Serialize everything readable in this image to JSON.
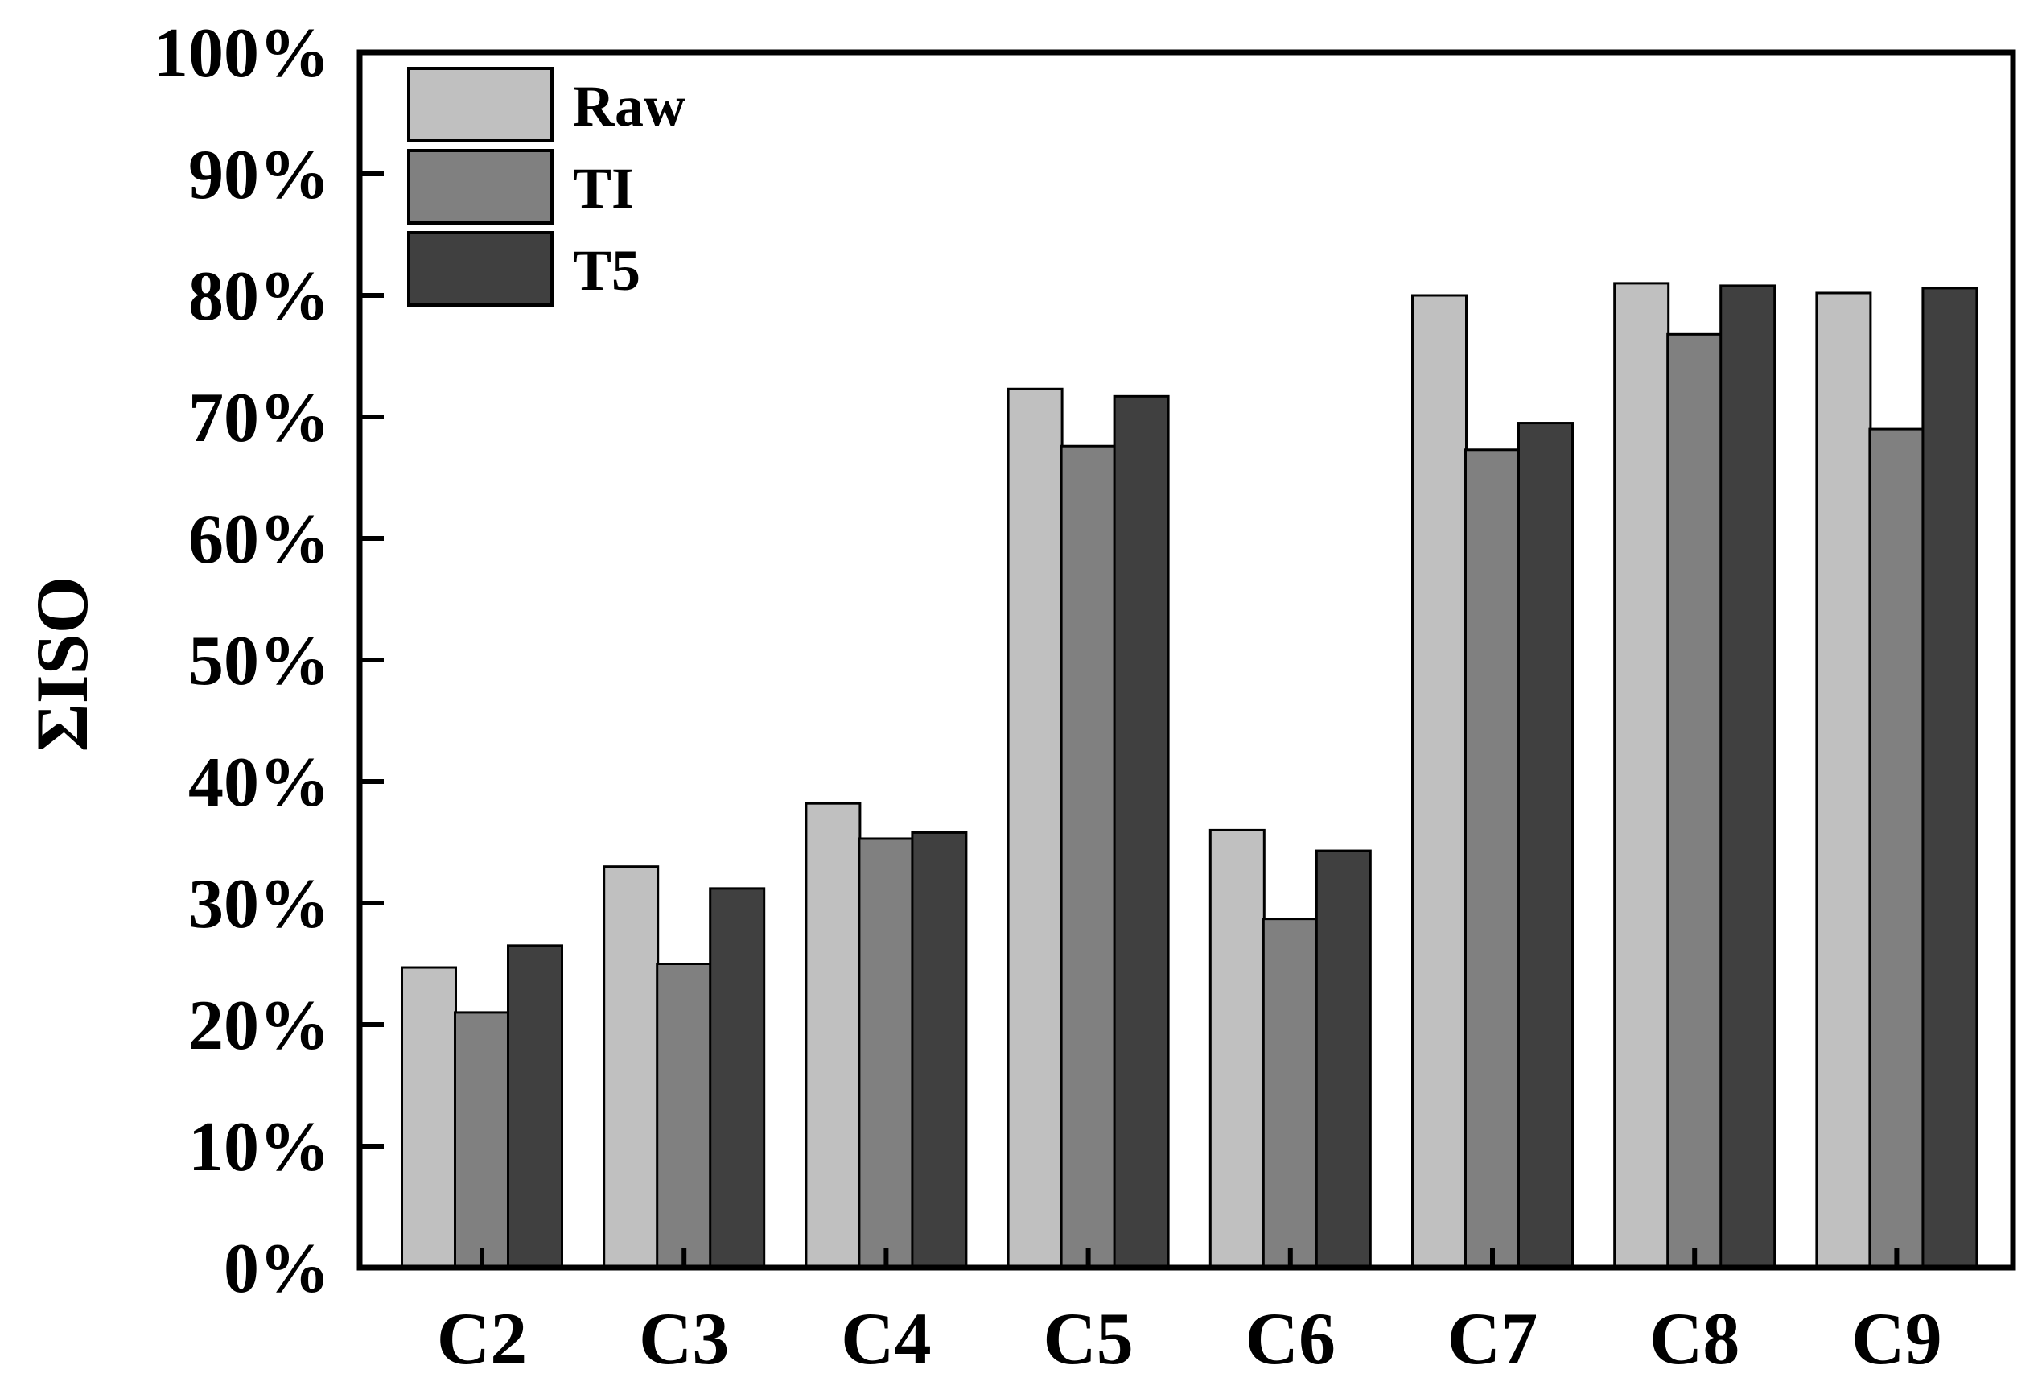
{
  "chart_data": {
    "type": "bar",
    "title": "",
    "xlabel": "",
    "ylabel": "ΣISO",
    "ylim": [
      0,
      100
    ],
    "y_ticks": [
      0,
      10,
      20,
      30,
      40,
      50,
      60,
      70,
      80,
      90,
      100
    ],
    "y_tick_labels": [
      "0%",
      "10%",
      "20%",
      "30%",
      "40%",
      "50%",
      "60%",
      "70%",
      "80%",
      "90%",
      "100%"
    ],
    "grid": false,
    "legend_position": "top-left",
    "categories": [
      "C2",
      "C3",
      "C4",
      "C5",
      "C6",
      "C7",
      "C8",
      "C9"
    ],
    "series": [
      {
        "name": "Raw",
        "color": "#c0c0c0",
        "values": [
          24.7,
          33.0,
          38.2,
          72.3,
          36.0,
          80.0,
          81.0,
          80.2
        ]
      },
      {
        "name": "TI",
        "color": "#808080",
        "values": [
          21.0,
          25.0,
          35.3,
          67.6,
          28.7,
          67.3,
          76.8,
          69.0
        ]
      },
      {
        "name": "T5",
        "color": "#404040",
        "values": [
          26.5,
          31.2,
          35.8,
          71.7,
          34.3,
          69.5,
          80.8,
          80.6
        ]
      }
    ]
  }
}
